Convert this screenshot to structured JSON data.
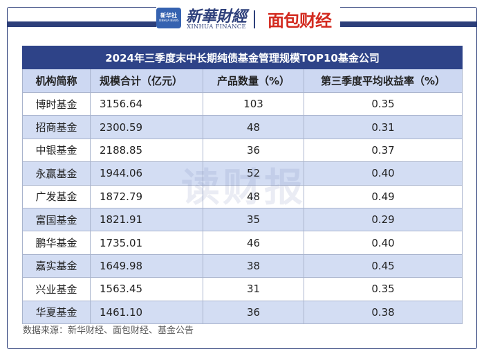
{
  "header": {
    "logo_xinhua": "新华社",
    "logo_xinhua_sub": "XINHUA NEWS",
    "brand_cn": "新華財經",
    "brand_en": "XINHUA FINANCE",
    "brand_mianbao": "面包财经"
  },
  "table": {
    "title": "2024年三季度末中长期纯债基金管理规模TOP10基金公司",
    "columns": [
      "机构简称",
      "规模合计（亿元）",
      "产品数量（%）",
      "第三季度平均收益率（%）"
    ],
    "rows": [
      [
        "博时基金",
        "3156.64",
        "103",
        "0.35"
      ],
      [
        "招商基金",
        "2300.59",
        "48",
        "0.31"
      ],
      [
        "中银基金",
        "2188.85",
        "36",
        "0.37"
      ],
      [
        "永赢基金",
        "1944.06",
        "52",
        "0.40"
      ],
      [
        "广发基金",
        "1872.79",
        "48",
        "0.49"
      ],
      [
        "富国基金",
        "1821.91",
        "35",
        "0.29"
      ],
      [
        "鹏华基金",
        "1735.01",
        "46",
        "0.40"
      ],
      [
        "嘉实基金",
        "1649.98",
        "38",
        "0.45"
      ],
      [
        "兴业基金",
        "1563.45",
        "31",
        "0.35"
      ],
      [
        "华夏基金",
        "1461.10",
        "36",
        "0.38"
      ]
    ]
  },
  "watermark": "读财报",
  "source": "数据来源：新华财经、面包财经、基金公告",
  "colors": {
    "navy": "#2e4388",
    "stripe": "#d3ddf3",
    "brand_red": "#d32a1f"
  }
}
